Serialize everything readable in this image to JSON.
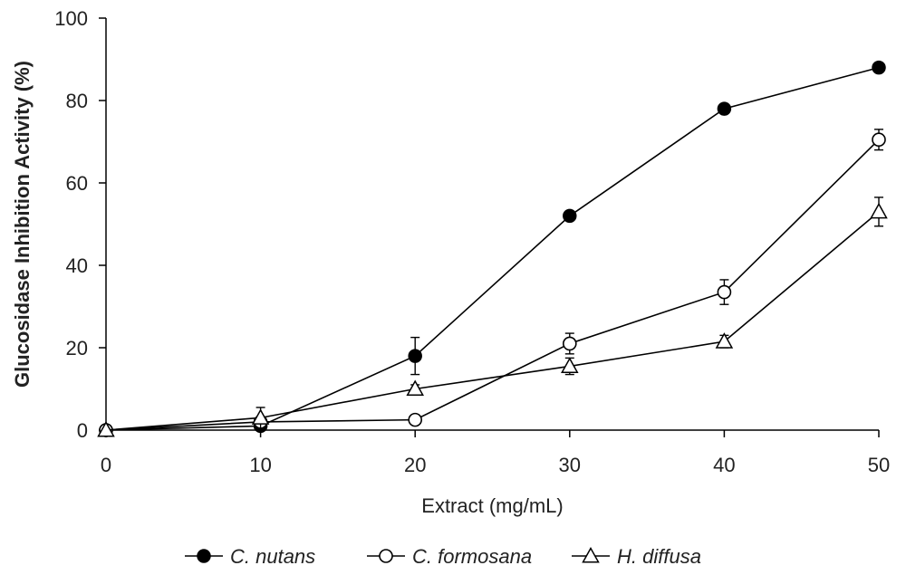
{
  "chart_data": {
    "type": "line",
    "title": "",
    "xlabel": "Extract (mg/mL)",
    "ylabel": "Glucosidase Inhibition Activity (%)",
    "x": [
      0,
      10,
      20,
      30,
      40,
      50
    ],
    "xlim": [
      0,
      50
    ],
    "ylim": [
      0,
      100
    ],
    "xticks": [
      0,
      10,
      20,
      30,
      40,
      50
    ],
    "yticks": [
      0,
      20,
      40,
      60,
      80,
      100
    ],
    "grid": false,
    "legend_position": "bottom",
    "series": [
      {
        "name": "C. nutans",
        "marker": "filled-circle",
        "values": [
          0,
          1,
          18,
          52,
          78,
          88
        ],
        "errors": [
          0,
          0.5,
          4.5,
          0.5,
          0.5,
          0.5
        ]
      },
      {
        "name": "C. formosana",
        "marker": "open-circle",
        "values": [
          0,
          2,
          2.5,
          21,
          33.5,
          70.5
        ],
        "errors": [
          0,
          0.8,
          0.5,
          2.5,
          3,
          2.5
        ]
      },
      {
        "name": "H. diffusa",
        "marker": "open-triangle",
        "values": [
          0,
          3,
          10,
          15.5,
          21.5,
          53
        ],
        "errors": [
          0,
          2.5,
          1,
          2,
          1.5,
          3.5
        ]
      }
    ]
  }
}
